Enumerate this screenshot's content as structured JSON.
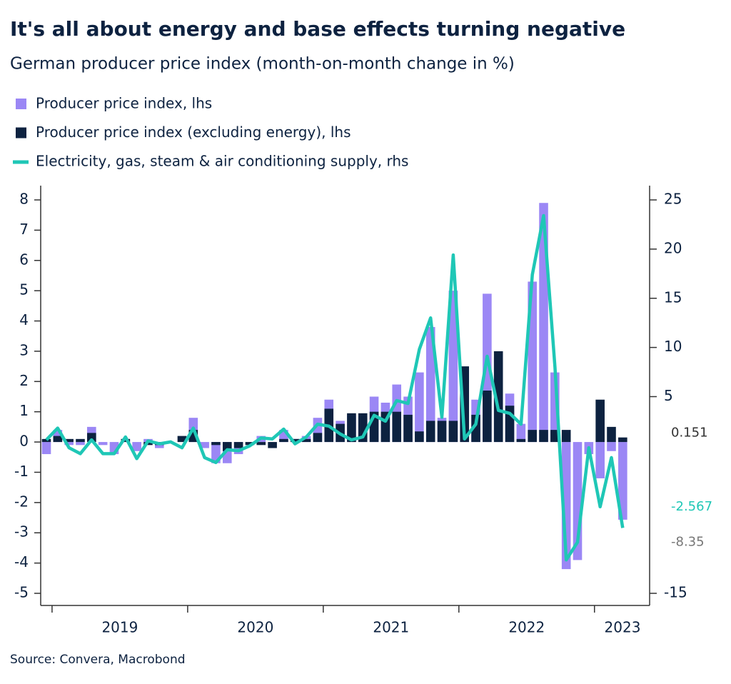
{
  "chart_data": {
    "type": "bar",
    "title": "It's all about energy and base effects turning negative",
    "subtitle": "German producer price index (month-on-month change in %)",
    "source": "Source: Convera, Macrobond",
    "year_labels": [
      "2019",
      "2020",
      "2021",
      "2022",
      "2023"
    ],
    "ylim": [
      -5,
      8
    ],
    "yticks": [
      -5,
      -4,
      -3,
      -2,
      -1,
      0,
      1,
      2,
      3,
      4,
      5,
      6,
      7,
      8
    ],
    "y2lim": [
      -15,
      25
    ],
    "y2ticks": [
      -15,
      5,
      10,
      15,
      20,
      25
    ],
    "series": [
      {
        "name": "Producer price index, lhs",
        "type": "bar",
        "color": "#9b87f5",
        "values": [
          -0.4,
          0.4,
          -0.1,
          -0.1,
          0.5,
          -0.1,
          -0.4,
          0.1,
          -0.3,
          0.1,
          -0.2,
          0.0,
          0.0,
          0.8,
          -0.2,
          -0.7,
          -0.7,
          -0.4,
          0.0,
          0.2,
          0.0,
          0.4,
          0.1,
          0.2,
          0.8,
          1.4,
          0.7,
          0.9,
          0.8,
          1.5,
          1.3,
          1.9,
          1.5,
          2.3,
          3.8,
          0.8,
          5.0,
          2.2,
          1.4,
          4.9,
          2.8,
          1.6,
          0.6,
          5.3,
          7.9,
          2.3,
          -4.2,
          -3.9,
          -0.4,
          -1.2,
          -0.3,
          -2.567
        ]
      },
      {
        "name": "Producer price index (excluding energy), lhs",
        "type": "bar",
        "color": "#0d2240",
        "values": [
          0.1,
          0.2,
          0.1,
          0.1,
          0.3,
          0.0,
          0.0,
          0.1,
          0.0,
          -0.1,
          -0.1,
          0.0,
          0.2,
          0.4,
          0.0,
          -0.1,
          -0.3,
          -0.2,
          -0.1,
          -0.1,
          -0.2,
          0.1,
          0.1,
          0.1,
          0.3,
          1.1,
          0.6,
          0.95,
          0.95,
          1.0,
          1.0,
          1.0,
          0.9,
          0.35,
          0.7,
          0.7,
          0.7,
          2.5,
          0.9,
          1.7,
          3.0,
          1.2,
          0.1,
          0.4,
          0.4,
          0.4,
          0.4,
          0.0,
          0.0,
          1.4,
          0.5,
          0.151
        ]
      },
      {
        "name": "Electricity, gas, steam & air conditioning supply, rhs",
        "type": "line",
        "axis": "y2",
        "color": "#1fc7b6",
        "values": [
          0.6,
          1.8,
          -0.2,
          -0.8,
          0.6,
          -0.8,
          -0.8,
          0.9,
          -1.3,
          0.5,
          0.2,
          0.4,
          -0.2,
          1.8,
          -1.2,
          -1.7,
          -0.4,
          -0.5,
          0.0,
          0.8,
          0.7,
          1.7,
          0.2,
          0.9,
          2.2,
          2.0,
          1.2,
          0.6,
          0.9,
          3.1,
          2.5,
          4.6,
          4.3,
          9.8,
          13.0,
          2.9,
          19.4,
          0.7,
          2.2,
          9.1,
          3.6,
          3.3,
          2.2,
          17.4,
          23.4,
          8.0,
          -11.6,
          -9.8,
          -0.2,
          -6.2,
          -1.2,
          -8.35
        ]
      }
    ]
  }
}
